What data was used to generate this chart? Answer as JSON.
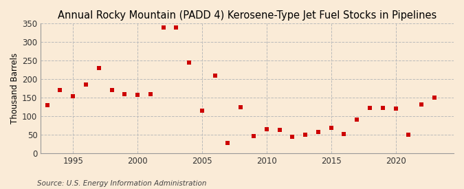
{
  "title": "Annual Rocky Mountain (PADD 4) Kerosene-Type Jet Fuel Stocks in Pipelines",
  "ylabel": "Thousand Barrels",
  "source": "Source: U.S. Energy Information Administration",
  "background_color": "#faebd7",
  "years": [
    1993,
    1994,
    1995,
    1996,
    1997,
    1998,
    1999,
    2000,
    2001,
    2002,
    2003,
    2004,
    2005,
    2006,
    2007,
    2008,
    2009,
    2010,
    2011,
    2012,
    2013,
    2014,
    2015,
    2016,
    2017,
    2018,
    2019,
    2020,
    2021,
    2022,
    2023
  ],
  "values": [
    130,
    170,
    153,
    185,
    230,
    170,
    160,
    158,
    160,
    338,
    338,
    245,
    115,
    210,
    27,
    123,
    47,
    65,
    62,
    45,
    50,
    58,
    68,
    51,
    91,
    122,
    122,
    121,
    50,
    132,
    150
  ],
  "marker_color": "#cc0000",
  "marker_size": 18,
  "ylim": [
    0,
    350
  ],
  "yticks": [
    0,
    50,
    100,
    150,
    200,
    250,
    300,
    350
  ],
  "xlim_left": 1992.5,
  "xlim_right": 2024.5,
  "grid_color": "#bbbbbb",
  "vline_years": [
    1995,
    2000,
    2005,
    2010,
    2015,
    2020
  ],
  "title_fontsize": 10.5,
  "label_fontsize": 8.5,
  "tick_fontsize": 8.5,
  "source_fontsize": 7.5
}
